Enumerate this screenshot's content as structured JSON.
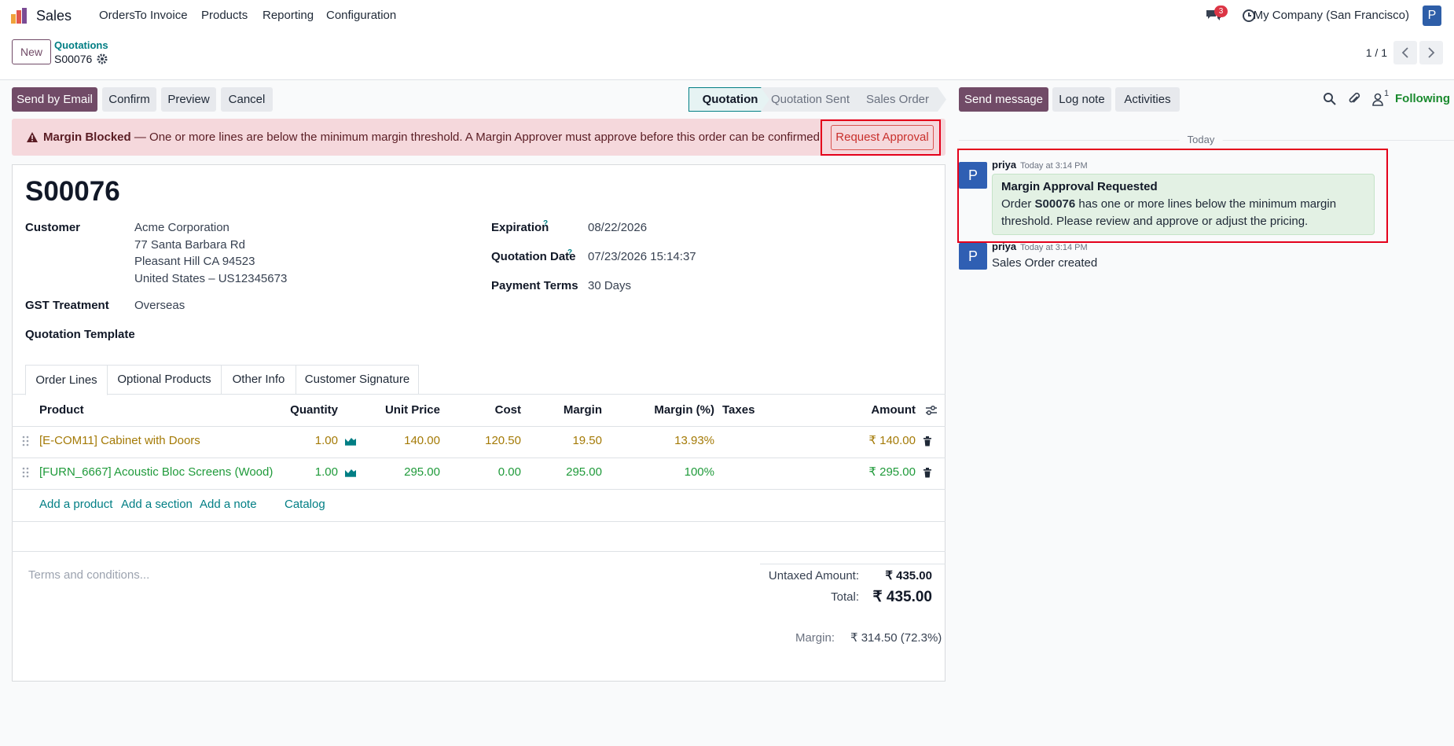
{
  "navbar": {
    "app": "Sales",
    "menu": [
      "Orders",
      "To Invoice",
      "Products",
      "Reporting",
      "Configuration"
    ],
    "message_count": "3",
    "company": "My Company (San Francisco)",
    "avatar": "P"
  },
  "control_panel": {
    "new_button": "New",
    "breadcrumb": "Quotations",
    "record": "S00076",
    "pager": "1 / 1"
  },
  "actions": [
    "Send by Email",
    "Confirm",
    "Preview",
    "Cancel"
  ],
  "statusbar": [
    "Quotation",
    "Quotation Sent",
    "Sales Order"
  ],
  "alert": {
    "title": "Margin Blocked",
    "message": "— One or more lines are below the minimum margin threshold. A Margin Approver must approve before this order can be confirmed.",
    "button": "Request Approval"
  },
  "form": {
    "name": "S00076",
    "left_fields": [
      {
        "label": "Customer",
        "value": [
          "Acme Corporation",
          "77 Santa Barbara Rd",
          "Pleasant Hill CA 94523",
          "United States – US12345673"
        ]
      },
      {
        "label": "GST Treatment",
        "value": [
          "Overseas"
        ]
      },
      {
        "label": "Quotation Template"
      }
    ],
    "right_fields": [
      {
        "label": "Expiration",
        "help": "?",
        "value": "08/22/2026"
      },
      {
        "label": "Quotation Date",
        "help": "?",
        "value": "07/23/2026 15:14:37"
      },
      {
        "label": "Payment Terms",
        "value": "30 Days"
      }
    ],
    "tabs": [
      "Order Lines",
      "Optional Products",
      "Other Info",
      "Customer Signature"
    ],
    "order_lines": {
      "columns": [
        "Product",
        "Quantity",
        "Unit Price",
        "Cost",
        "Margin",
        "Margin (%)",
        "Taxes",
        "Amount"
      ],
      "rows": [
        {
          "product": "[E-COM11] Cabinet with Doors",
          "quantity": "1.00",
          "unit_price": "140.00",
          "cost": "120.50",
          "margin": "19.50",
          "margin_percent": "13.93%",
          "amount": "₹ 140.00"
        },
        {
          "product": "[FURN_6667] Acoustic Bloc Screens (Wood)",
          "quantity": "1.00",
          "unit_price": "295.00",
          "cost": "0.00",
          "margin": "295.00",
          "margin_percent": "100%",
          "amount": "₹ 295.00"
        }
      ],
      "links": [
        "Add a product",
        "Add a section",
        "Add a note",
        "Catalog"
      ]
    },
    "terms_placeholder": "Terms and conditions...",
    "totals": {
      "untaxed_label": "Untaxed Amount:",
      "untaxed": "₹ 435.00",
      "total_label": "Total:",
      "total": "₹ 435.00",
      "margin_label": "Margin:",
      "margin": "₹ 314.50 (72.3%)"
    }
  },
  "chatter": {
    "buttons": [
      "Send message",
      "Log note",
      "Activities"
    ],
    "follower_count": "1",
    "following": "Following",
    "date": "Today",
    "messages": [
      {
        "avatar": "P",
        "author": "priya",
        "time": "Today at 3:14 PM",
        "title": "Margin Approval Requested",
        "body_before": "Order ",
        "body_bold": "S00076",
        "body_after": " has one or more lines below the minimum margin threshold. Please review and approve or adjust the pricing."
      },
      {
        "avatar": "P",
        "author": "priya",
        "time": "Today at 3:14 PM",
        "body": "Sales Order created"
      }
    ]
  }
}
